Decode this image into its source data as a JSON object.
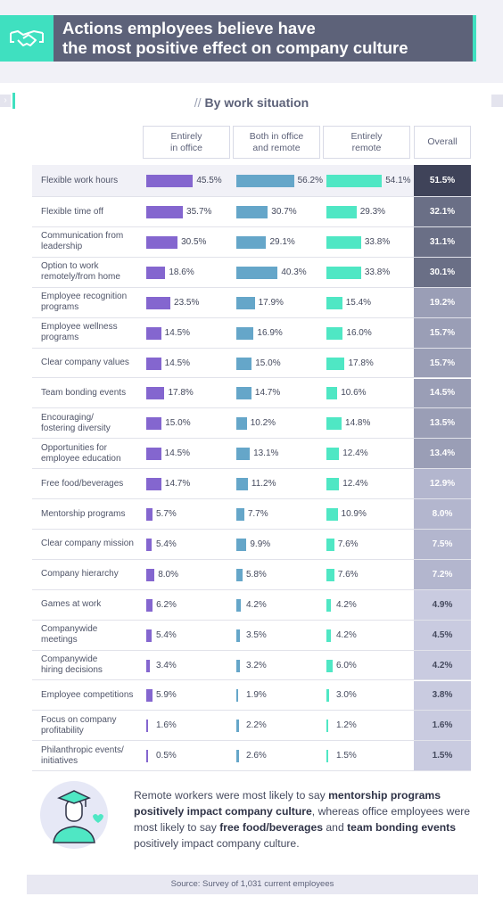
{
  "header": {
    "title_line1": "Actions employees believe have",
    "title_line2": "the most positive effect on company culture",
    "icon": "handshake-icon"
  },
  "card": {
    "subtitle_prefix": "//",
    "subtitle": "By work situation"
  },
  "columns": {
    "office_line1": "Entirely",
    "office_line2": "in office",
    "both_line1": "Both in office",
    "both_line2": "and remote",
    "remote_line1": "Entirely",
    "remote_line2": "remote",
    "overall": "Overall"
  },
  "chart_data": {
    "type": "bar",
    "title": "Actions employees believe have the most positive effect on company culture",
    "subtitle": "By work situation",
    "categories": [
      "Flexible work hours",
      "Flexible time off",
      "Communication from leadership",
      "Option to work remotely/from home",
      "Employee recognition programs",
      "Employee wellness programs",
      "Clear company values",
      "Team bonding events",
      "Encouraging/ fostering diversity",
      "Opportunities for employee education",
      "Free food/beverages",
      "Mentorship programs",
      "Clear company mission",
      "Company hierarchy",
      "Games at work",
      "Companywide meetings",
      "Companywide hiring decisions",
      "Employee competitions",
      "Focus on company profitability",
      "Philanthropic events/ initiatives"
    ],
    "series": [
      {
        "name": "Entirely in office",
        "color": "#8466cf",
        "values": [
          45.5,
          35.7,
          30.5,
          18.6,
          23.5,
          14.5,
          14.5,
          17.8,
          15.0,
          14.5,
          14.7,
          5.7,
          5.4,
          8.0,
          6.2,
          5.4,
          3.4,
          5.9,
          1.6,
          0.5
        ]
      },
      {
        "name": "Both in office and remote",
        "color": "#65a6c9",
        "values": [
          56.2,
          30.7,
          29.1,
          40.3,
          17.9,
          16.9,
          15.0,
          14.7,
          10.2,
          13.1,
          11.2,
          7.7,
          9.9,
          5.8,
          4.2,
          3.5,
          3.2,
          1.9,
          2.2,
          2.6
        ]
      },
      {
        "name": "Entirely remote",
        "color": "#4fe7c4",
        "values": [
          54.1,
          29.3,
          33.8,
          33.8,
          15.4,
          16.0,
          17.8,
          10.6,
          14.8,
          12.4,
          12.4,
          10.9,
          7.6,
          7.6,
          4.2,
          4.2,
          6.0,
          3.0,
          1.2,
          1.5
        ]
      },
      {
        "name": "Overall",
        "values": [
          51.5,
          32.1,
          31.1,
          30.1,
          19.2,
          15.7,
          15.7,
          14.5,
          13.5,
          13.4,
          12.9,
          8.0,
          7.5,
          7.2,
          4.9,
          4.5,
          4.2,
          3.8,
          1.6,
          1.5
        ]
      }
    ],
    "unit": "%",
    "label_lines": [
      [
        "Flexible work hours"
      ],
      [
        "Flexible time off"
      ],
      [
        "Communication from",
        "leadership"
      ],
      [
        "Option to work",
        "remotely/from home"
      ],
      [
        "Employee recognition",
        "programs"
      ],
      [
        "Employee wellness",
        "programs"
      ],
      [
        "Clear company values"
      ],
      [
        "Team bonding events"
      ],
      [
        "Encouraging/",
        "fostering diversity"
      ],
      [
        "Opportunities for",
        "employee education"
      ],
      [
        "Free food/beverages"
      ],
      [
        "Mentorship programs"
      ],
      [
        "Clear company mission"
      ],
      [
        "Company hierarchy"
      ],
      [
        "Games at work"
      ],
      [
        "Companywide",
        "meetings"
      ],
      [
        "Companywide",
        "hiring decisions"
      ],
      [
        "Employee competitions"
      ],
      [
        "Focus on company",
        "profitability"
      ],
      [
        "Philanthropic events/",
        "initiatives"
      ]
    ]
  },
  "note": {
    "part1": "Remote workers were most likely to say ",
    "bold1": "mentorship programs positively impact company culture",
    "part2": ", whereas office employees were most likely to say ",
    "bold2": "free food/beverages",
    "part3": " and ",
    "bold3": "team bonding events",
    "part4": " positively impact company culture."
  },
  "source": "Source: Survey of 1,031 current employees",
  "colors": {
    "header_bg": "#5d6279",
    "accent": "#3fe0c0",
    "office": "#8466cf",
    "both": "#65a6c9",
    "remote": "#4fe7c4"
  }
}
